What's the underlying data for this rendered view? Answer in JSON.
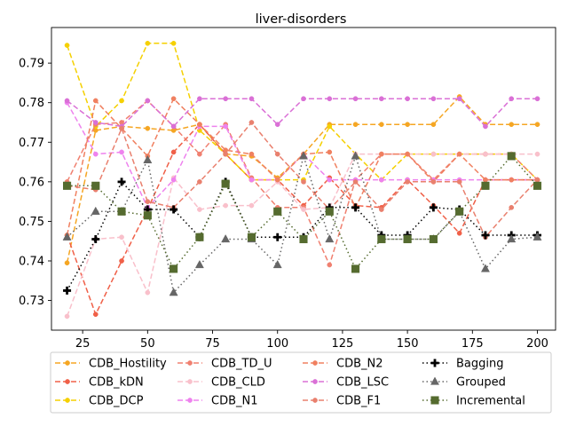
{
  "chart_data": {
    "type": "line",
    "title": "liver-disorders",
    "xlabel": "",
    "ylabel": "",
    "xlim": [
      13,
      207
    ],
    "ylim": [
      0.7225,
      0.799
    ],
    "x_ticks": [
      25,
      50,
      75,
      100,
      125,
      150,
      175,
      200
    ],
    "y_ticks": [
      0.73,
      0.74,
      0.75,
      0.76,
      0.77,
      0.78,
      0.79
    ],
    "grid": false,
    "legend_position": "bottom",
    "legend_columns": 4,
    "x": [
      19,
      30,
      40,
      50,
      60,
      70,
      80,
      90,
      100,
      110,
      120,
      130,
      140,
      150,
      160,
      170,
      180,
      190,
      200
    ],
    "series": [
      {
        "name": "CDB_Hostility",
        "color": "#f5a623",
        "dash": "6,3",
        "marker": "circle",
        "values": [
          0.7395,
          0.773,
          0.774,
          0.7735,
          0.773,
          0.7745,
          0.767,
          0.7665,
          0.761,
          0.767,
          0.7745,
          0.7745,
          0.7745,
          0.7745,
          0.7745,
          0.7815,
          0.7745,
          0.7745,
          0.7745
        ]
      },
      {
        "name": "CDB_kDN",
        "color": "#f06048",
        "dash": "6,3",
        "marker": "circle",
        "values": [
          0.7465,
          0.7265,
          0.74,
          0.753,
          0.7675,
          0.7745,
          0.767,
          0.7605,
          0.7605,
          0.754,
          0.761,
          0.754,
          0.7535,
          0.7605,
          0.754,
          0.747,
          0.7605,
          0.7605,
          0.7605
        ]
      },
      {
        "name": "CDB_DCP",
        "color": "#f5d000",
        "dash": "6,3",
        "marker": "circle",
        "values": [
          0.7945,
          0.774,
          0.7805,
          0.795,
          0.795,
          0.773,
          0.767,
          0.7605,
          0.7605,
          0.7605,
          0.774,
          0.767,
          0.7605,
          0.767,
          0.767,
          0.767,
          0.767,
          0.767,
          0.7605
        ]
      },
      {
        "name": "CDB_TD_U",
        "color": "#f08070",
        "dash": "6,3",
        "marker": "circle",
        "values": [
          0.76,
          0.7745,
          0.775,
          0.7805,
          0.774,
          0.767,
          0.7745,
          0.761,
          0.7535,
          0.7535,
          0.739,
          0.7605,
          0.767,
          0.767,
          0.7605,
          0.767,
          0.767,
          0.767,
          0.7605
        ]
      },
      {
        "name": "CDB_CLD",
        "color": "#f9c0cb",
        "dash": "6,3",
        "marker": "circle",
        "values": [
          0.726,
          0.7455,
          0.746,
          0.732,
          0.761,
          0.753,
          0.754,
          0.754,
          0.76,
          0.753,
          0.7535,
          0.767,
          0.767,
          0.767,
          0.767,
          0.767,
          0.767,
          0.767,
          0.767
        ]
      },
      {
        "name": "CDB_N1",
        "color": "#ee82ee",
        "dash": "6,3",
        "marker": "circle",
        "values": [
          0.78,
          0.767,
          0.7675,
          0.7535,
          0.7605,
          0.774,
          0.774,
          0.7605,
          0.7605,
          0.767,
          0.7605,
          0.7605,
          0.7605,
          0.7605,
          0.7605,
          0.7605,
          0.7605,
          0.7605,
          0.7605
        ]
      },
      {
        "name": "CDB_N2",
        "color": "#f08060",
        "dash": "6,3",
        "marker": "circle",
        "values": [
          0.7465,
          0.7805,
          0.7735,
          0.7665,
          0.781,
          0.7745,
          0.768,
          0.767,
          0.7605,
          0.767,
          0.7675,
          0.7535,
          0.767,
          0.767,
          0.76,
          0.767,
          0.7605,
          0.7605,
          0.7605
        ]
      },
      {
        "name": "CDB_LSC",
        "color": "#da70d6",
        "dash": "6,3",
        "marker": "circle",
        "values": [
          0.7805,
          0.775,
          0.774,
          0.7805,
          0.774,
          0.781,
          0.781,
          0.781,
          0.7745,
          0.781,
          0.781,
          0.781,
          0.781,
          0.781,
          0.781,
          0.781,
          0.774,
          0.781,
          0.781
        ]
      },
      {
        "name": "CDB_F1",
        "color": "#e9806e",
        "dash": "6,3",
        "marker": "circle",
        "values": [
          0.759,
          0.758,
          0.7735,
          0.755,
          0.7535,
          0.76,
          0.767,
          0.775,
          0.767,
          0.76,
          0.753,
          0.76,
          0.753,
          0.76,
          0.76,
          0.76,
          0.746,
          0.7535,
          0.7605
        ]
      },
      {
        "name": "Bagging",
        "color": "#000000",
        "dash": "1.5,3",
        "marker": "plus",
        "values": [
          0.7325,
          0.7455,
          0.76,
          0.753,
          0.753,
          0.746,
          0.76,
          0.746,
          0.746,
          0.746,
          0.7535,
          0.7535,
          0.7465,
          0.7465,
          0.7535,
          0.753,
          0.7465,
          0.7465,
          0.7465
        ]
      },
      {
        "name": "Grouped",
        "color": "#666666",
        "dash": "1.5,3",
        "marker": "triangle",
        "values": [
          0.746,
          0.7525,
          0.7525,
          0.7655,
          0.732,
          0.739,
          0.7455,
          0.7455,
          0.739,
          0.7665,
          0.7455,
          0.7665,
          0.7455,
          0.7455,
          0.7455,
          0.7525,
          0.738,
          0.7455,
          0.746
        ]
      },
      {
        "name": "Incremental",
        "color": "#556b2f",
        "dash": "1.5,3",
        "marker": "square",
        "values": [
          0.759,
          0.759,
          0.7525,
          0.7515,
          0.738,
          0.746,
          0.7595,
          0.746,
          0.7525,
          0.7455,
          0.7525,
          0.738,
          0.7455,
          0.7455,
          0.7455,
          0.7525,
          0.759,
          0.7665,
          0.759
        ]
      }
    ]
  }
}
